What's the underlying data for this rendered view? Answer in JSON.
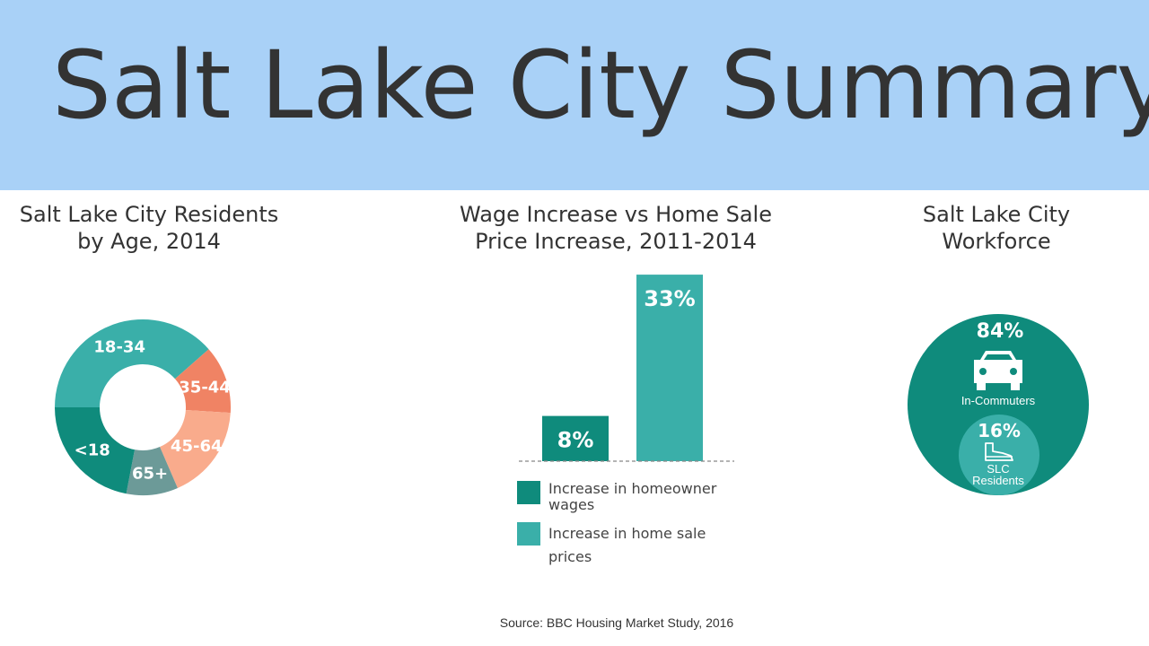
{
  "title": "Salt Lake City Summary",
  "source": "Source: BBC Housing Market Study, 2016",
  "colors": {
    "banner": "#a9d1f7",
    "dark_teal": "#0f8b7c",
    "light_teal": "#3aafa9",
    "salmon_dark": "#f08364",
    "salmon_light": "#f9ab8c",
    "slate": "#6c9a98"
  },
  "chart_data": [
    {
      "type": "pie",
      "title_lines": [
        "Salt Lake City Residents",
        "by Age, 2014"
      ],
      "slices": [
        {
          "label": "18-34",
          "color": "#3aafa9",
          "value": 0.385
        },
        {
          "label": "35-44",
          "color": "#f08364",
          "value": 0.125
        },
        {
          "label": "45-64",
          "color": "#f9ab8c",
          "value": 0.175
        },
        {
          "label": "65+",
          "color": "#6c9a98",
          "value": 0.095
        },
        {
          "label": "<18",
          "color": "#0f8b7c",
          "value": 0.22
        }
      ]
    },
    {
      "type": "bar",
      "title_lines": [
        "Wage Increase vs Home Sale",
        "Price Increase, 2011-2014"
      ],
      "categories": [
        "Increase in homeowner wages",
        "Increase in home sale prices"
      ],
      "values": [
        8,
        33
      ],
      "value_labels": [
        "8%",
        "33%"
      ],
      "colors": [
        "#0f8b7c",
        "#3aafa9"
      ],
      "legend": [
        {
          "lines": [
            "Increase in homeowner",
            "wages"
          ],
          "color": "#0f8b7c"
        },
        {
          "lines": [
            "Increase in home sale prices"
          ],
          "color": "#3aafa9"
        }
      ]
    },
    {
      "type": "pie",
      "title_lines": [
        "Salt Lake City",
        "Workforce"
      ],
      "slices": [
        {
          "label": "In-Commuters",
          "value_label": "84%",
          "value": 84,
          "color": "#0f8b7c",
          "icon": "car-icon"
        },
        {
          "label_lines": [
            "SLC",
            "Residents"
          ],
          "value_label": "16%",
          "value": 16,
          "color": "#3aafa9",
          "icon": "shoe-icon"
        }
      ]
    }
  ]
}
